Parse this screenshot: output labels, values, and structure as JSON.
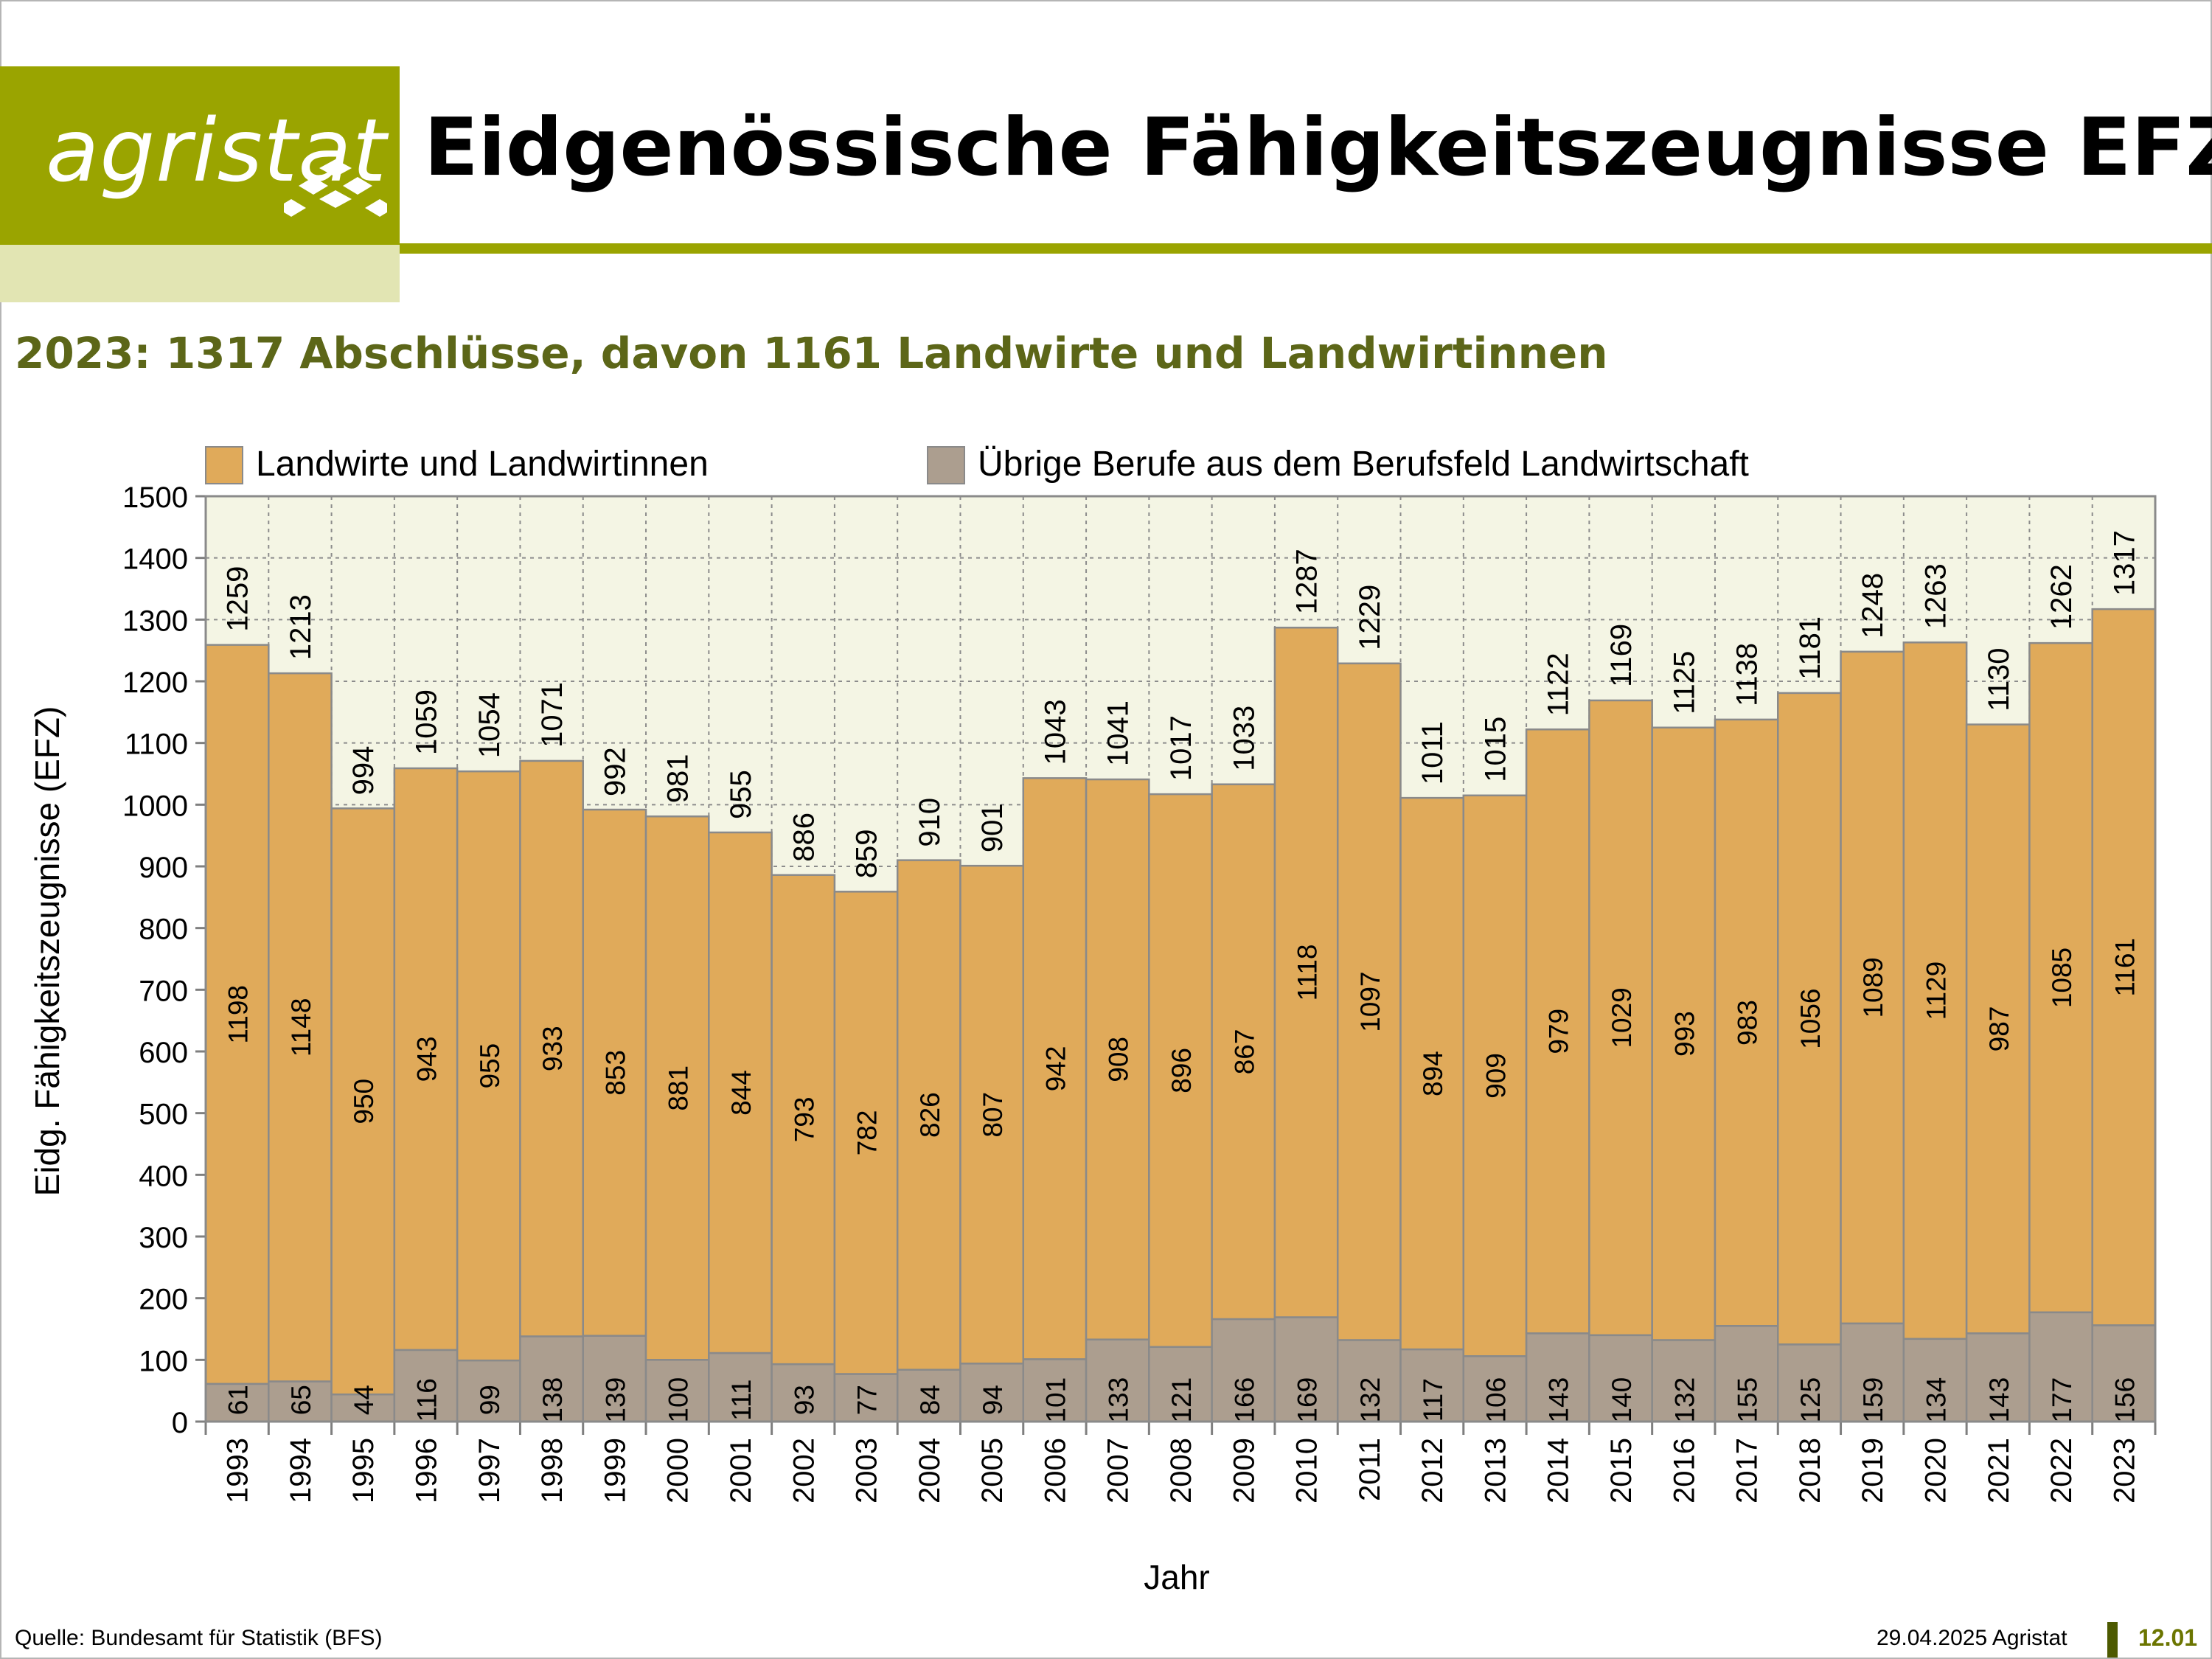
{
  "brand": {
    "name": "agristat"
  },
  "page_title": "Eidgenössische Fähigkeitszeugnisse EFZ",
  "subtitle": "2023: 1317 Abschlüsse, davon 1161 Landwirte und Landwirtinnen",
  "footer": {
    "source": "Quelle: Bundesamt für Statistik (BFS)",
    "date": "29.04.2025 Agristat",
    "page": "12.01"
  },
  "colors": {
    "brand": "#9aa400",
    "landwirte": "#e0aa5a",
    "uebrige": "#ac9e8f",
    "plot_bg": "#f4f5e4",
    "subtitle": "#5c6618"
  },
  "chart_data": {
    "type": "bar",
    "stacked": true,
    "categories": [
      "1993",
      "1994",
      "1995",
      "1996",
      "1997",
      "1998",
      "1999",
      "2000",
      "2001",
      "2002",
      "2003",
      "2004",
      "2005",
      "2006",
      "2007",
      "2008",
      "2009",
      "2010",
      "2011",
      "2012",
      "2013",
      "2014",
      "2015",
      "2016",
      "2017",
      "2018",
      "2019",
      "2020",
      "2021",
      "2022",
      "2023"
    ],
    "series": [
      {
        "name": "Übrige Berufe aus dem Berufsfeld Landwirtschaft",
        "values": [
          61,
          65,
          44,
          116,
          99,
          138,
          139,
          100,
          111,
          93,
          77,
          84,
          94,
          101,
          133,
          121,
          166,
          169,
          132,
          117,
          106,
          143,
          140,
          132,
          155,
          125,
          159,
          134,
          143,
          177,
          156
        ]
      },
      {
        "name": "Landwirte und Landwirtinnen",
        "values": [
          1198,
          1148,
          950,
          943,
          955,
          933,
          853,
          881,
          844,
          793,
          782,
          826,
          807,
          942,
          908,
          896,
          867,
          1118,
          1097,
          894,
          909,
          979,
          1029,
          993,
          983,
          1056,
          1089,
          1129,
          987,
          1085,
          1161
        ]
      }
    ],
    "totals": [
      1259,
      1213,
      994,
      1059,
      1054,
      1071,
      992,
      981,
      955,
      886,
      859,
      910,
      901,
      1043,
      1041,
      1017,
      1033,
      1287,
      1229,
      1011,
      1015,
      1122,
      1169,
      1125,
      1138,
      1181,
      1248,
      1263,
      1130,
      1262,
      1317
    ],
    "legend_order": [
      "Landwirte und Landwirtinnen",
      "Übrige Berufe aus dem Berufsfeld Landwirtschaft"
    ],
    "xlabel": "Jahr",
    "ylabel": "Eidg. Fähigkeitszeugnisse (EFZ)",
    "ylim": [
      0,
      1500
    ],
    "yticks": [
      0,
      100,
      200,
      300,
      400,
      500,
      600,
      700,
      800,
      900,
      1000,
      1100,
      1200,
      1300,
      1400,
      1500
    ],
    "grid": true,
    "legend_position": "top"
  }
}
